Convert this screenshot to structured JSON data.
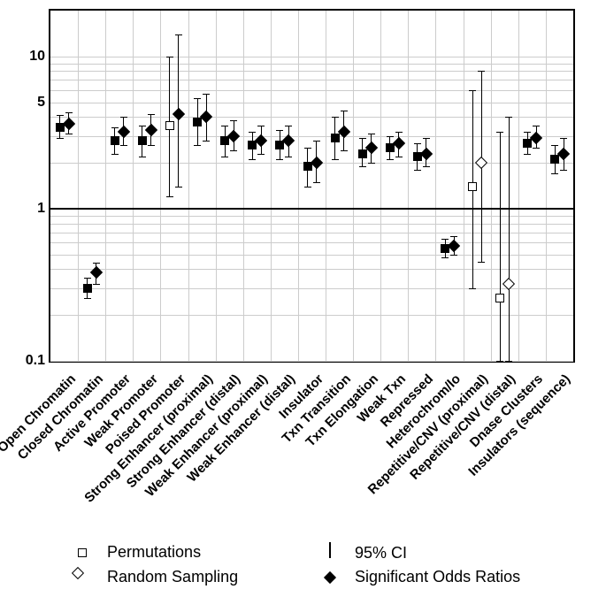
{
  "chart": {
    "type": "scatter-errorbar",
    "scale": "log10",
    "ylim": [
      0.1,
      20
    ],
    "yticks": [
      0.1,
      1,
      5,
      10
    ],
    "yminor": [
      0.2,
      0.3,
      0.4,
      0.5,
      0.6,
      0.7,
      0.8,
      0.9,
      2,
      3,
      4,
      6,
      7,
      8,
      9
    ],
    "ref": 1,
    "plot_background": "#ffffff",
    "grid_color": "#cccccc",
    "border_color": "#000000",
    "marker_fill": "#000000",
    "marker_hollow_fill": "#ffffff",
    "marker_stroke": "#000000",
    "category_fontsize": 15,
    "ytick_fontsize": 16,
    "legend_fontsize": 18,
    "categories": [
      "Open Chromatin",
      "Closed Chromatin",
      "Active Promoter",
      "Weak Promoter",
      "Poised Promoter",
      "Strong Enhancer (proximal)",
      "Strong Enhancer (distal)",
      "Weak Enhancer (proximal)",
      "Weak Enhancer (distal)",
      "Insulator",
      "Txn Transition",
      "Txn Elongation",
      "Weak Txn",
      "Repressed",
      "Heterochrom/lo",
      "Repetitive/CNV (proximal)",
      "Repetitive/CNV (distal)",
      "Dnase Clusters",
      "Insulators (sequence)"
    ],
    "points": {
      "0": {
        "perm": {
          "v": 3.4,
          "lo": 2.9,
          "hi": 4.1,
          "sig": true
        },
        "rs": {
          "v": 3.6,
          "lo": 3.1,
          "hi": 4.3,
          "sig": true
        }
      },
      "1": {
        "perm": {
          "v": 0.3,
          "lo": 0.26,
          "hi": 0.35,
          "sig": true
        },
        "rs": {
          "v": 0.38,
          "lo": 0.32,
          "hi": 0.44,
          "sig": true
        }
      },
      "2": {
        "perm": {
          "v": 2.8,
          "lo": 2.3,
          "hi": 3.4,
          "sig": true
        },
        "rs": {
          "v": 3.2,
          "lo": 2.6,
          "hi": 4.0,
          "sig": true
        }
      },
      "3": {
        "perm": {
          "v": 2.8,
          "lo": 2.2,
          "hi": 3.5,
          "sig": true
        },
        "rs": {
          "v": 3.3,
          "lo": 2.6,
          "hi": 4.2,
          "sig": true
        }
      },
      "4": {
        "perm": {
          "v": 3.5,
          "lo": 1.2,
          "hi": 10.0,
          "sig": false
        },
        "rs": {
          "v": 4.2,
          "lo": 1.4,
          "hi": 14.0,
          "sig": true
        }
      },
      "5": {
        "perm": {
          "v": 3.7,
          "lo": 2.6,
          "hi": 5.3,
          "sig": true
        },
        "rs": {
          "v": 4.0,
          "lo": 2.8,
          "hi": 5.7,
          "sig": true
        }
      },
      "6": {
        "perm": {
          "v": 2.8,
          "lo": 2.2,
          "hi": 3.5,
          "sig": true
        },
        "rs": {
          "v": 3.0,
          "lo": 2.4,
          "hi": 3.8,
          "sig": true
        }
      },
      "7": {
        "perm": {
          "v": 2.6,
          "lo": 2.1,
          "hi": 3.2,
          "sig": true
        },
        "rs": {
          "v": 2.8,
          "lo": 2.3,
          "hi": 3.5,
          "sig": true
        }
      },
      "8": {
        "perm": {
          "v": 2.6,
          "lo": 2.1,
          "hi": 3.3,
          "sig": true
        },
        "rs": {
          "v": 2.8,
          "lo": 2.2,
          "hi": 3.5,
          "sig": true
        }
      },
      "9": {
        "perm": {
          "v": 1.9,
          "lo": 1.4,
          "hi": 2.5,
          "sig": true
        },
        "rs": {
          "v": 2.0,
          "lo": 1.5,
          "hi": 2.8,
          "sig": true
        }
      },
      "10": {
        "perm": {
          "v": 2.9,
          "lo": 2.1,
          "hi": 4.0,
          "sig": true
        },
        "rs": {
          "v": 3.2,
          "lo": 2.4,
          "hi": 4.4,
          "sig": true
        }
      },
      "11": {
        "perm": {
          "v": 2.3,
          "lo": 1.9,
          "hi": 2.9,
          "sig": true
        },
        "rs": {
          "v": 2.5,
          "lo": 2.0,
          "hi": 3.1,
          "sig": true
        }
      },
      "12": {
        "perm": {
          "v": 2.5,
          "lo": 2.1,
          "hi": 3.0,
          "sig": true
        },
        "rs": {
          "v": 2.7,
          "lo": 2.2,
          "hi": 3.2,
          "sig": true
        }
      },
      "13": {
        "perm": {
          "v": 2.2,
          "lo": 1.8,
          "hi": 2.7,
          "sig": true
        },
        "rs": {
          "v": 2.3,
          "lo": 1.9,
          "hi": 2.9,
          "sig": true
        }
      },
      "14": {
        "perm": {
          "v": 0.55,
          "lo": 0.48,
          "hi": 0.63,
          "sig": true
        },
        "rs": {
          "v": 0.57,
          "lo": 0.5,
          "hi": 0.66,
          "sig": true
        }
      },
      "15": {
        "perm": {
          "v": 1.4,
          "lo": 0.3,
          "hi": 6.0,
          "sig": false
        },
        "rs": {
          "v": 2.0,
          "lo": 0.45,
          "hi": 8.0,
          "sig": false
        }
      },
      "16": {
        "perm": {
          "v": 0.26,
          "lo": 0.022,
          "hi": 3.2,
          "sig": false
        },
        "rs": {
          "v": 0.32,
          "lo": 0.024,
          "hi": 4.0,
          "sig": false
        }
      },
      "17": {
        "perm": {
          "v": 2.7,
          "lo": 2.3,
          "hi": 3.2,
          "sig": true
        },
        "rs": {
          "v": 2.9,
          "lo": 2.5,
          "hi": 3.5,
          "sig": true
        }
      },
      "18": {
        "perm": {
          "v": 2.1,
          "lo": 1.7,
          "hi": 2.6,
          "sig": true
        },
        "rs": {
          "v": 2.3,
          "lo": 1.8,
          "hi": 2.9,
          "sig": true
        }
      }
    }
  },
  "legend": {
    "permutations": "Permutations",
    "random_sampling": "Random Sampling",
    "ci": "95% CI",
    "sig": "Significant Odds Ratios"
  }
}
